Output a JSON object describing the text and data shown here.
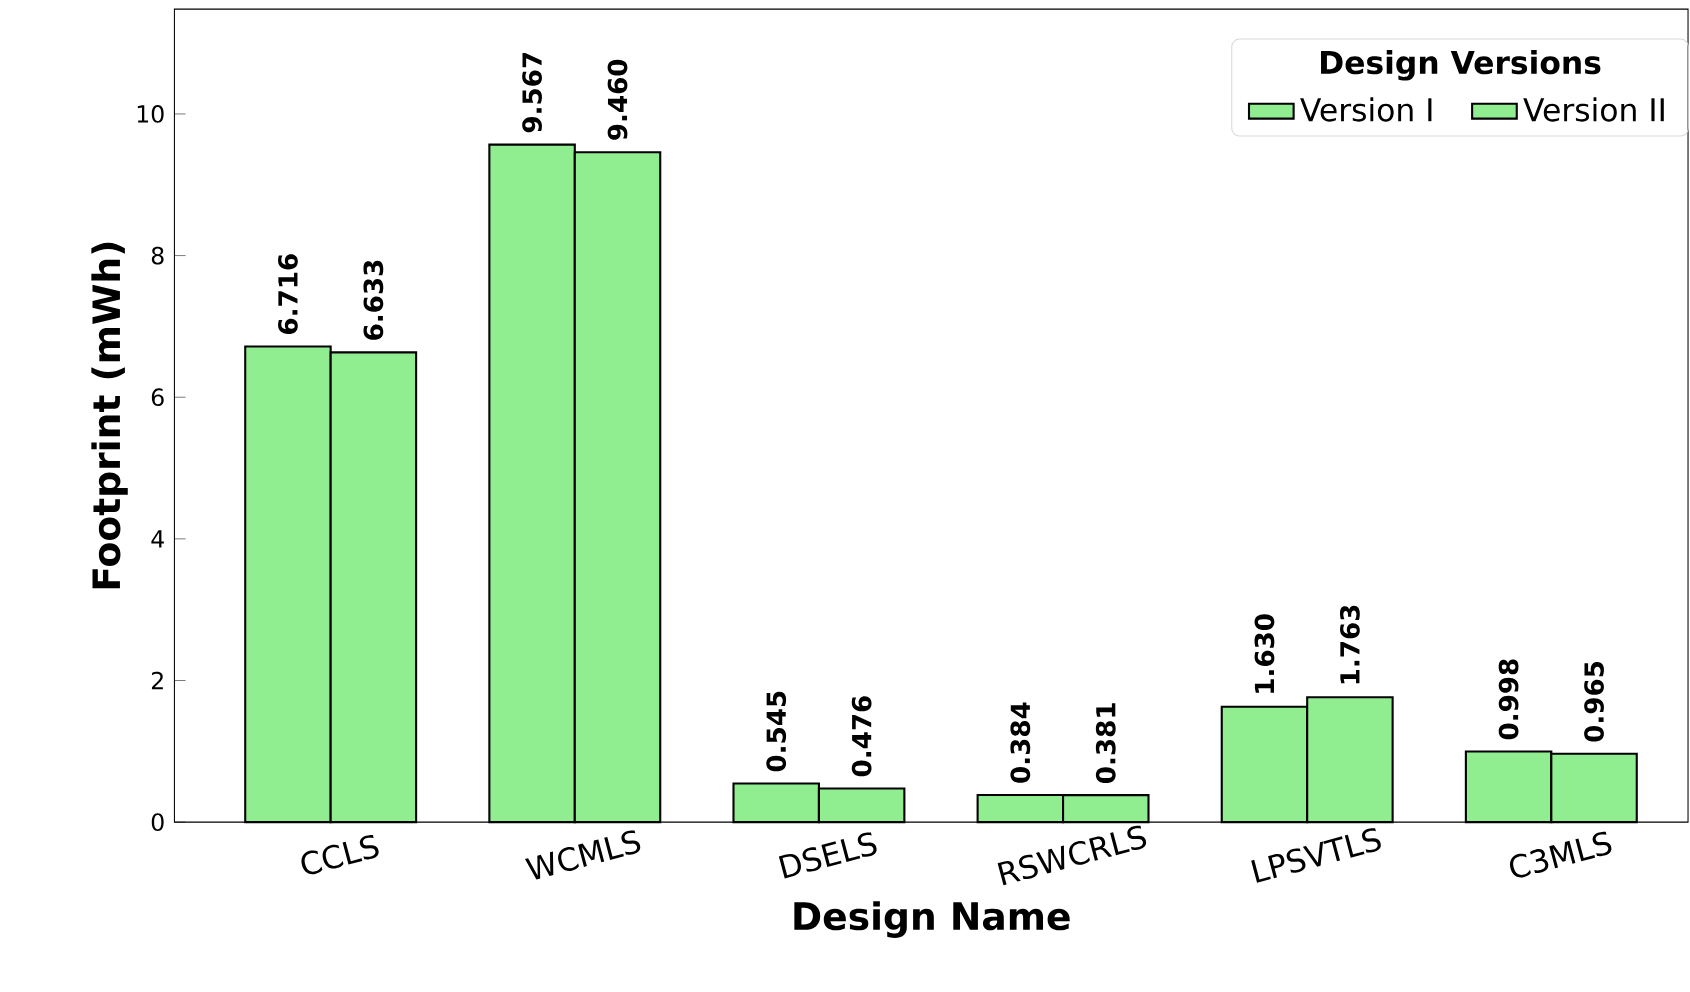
{
  "chart_data": {
    "type": "bar",
    "xlabel": "Design Name",
    "ylabel": "Footprint (mWh)",
    "legend_title": "Design Versions",
    "legend": "top right",
    "categories": [
      "CCLS",
      "WCMLS",
      "DSELS",
      "RSWCRLS",
      "LPSVTLS",
      "C3MLS"
    ],
    "series": [
      {
        "name": "Version I",
        "color": "#90ee90",
        "values": [
          6.716,
          9.567,
          0.545,
          0.384,
          1.63,
          0.998
        ],
        "value_labels": [
          "6.716",
          "9.567",
          "0.545",
          "0.384",
          "1.630",
          "0.998"
        ]
      },
      {
        "name": "Version II",
        "color": "#90ee90",
        "values": [
          6.633,
          9.46,
          0.476,
          0.381,
          1.763,
          0.965
        ],
        "value_labels": [
          "6.633",
          "9.460",
          "0.476",
          "0.381",
          "1.763",
          "0.965"
        ]
      }
    ],
    "ylim": [
      0,
      11.48
    ],
    "yticks": [
      0,
      2,
      4,
      6,
      8,
      10
    ],
    "grid": false
  }
}
